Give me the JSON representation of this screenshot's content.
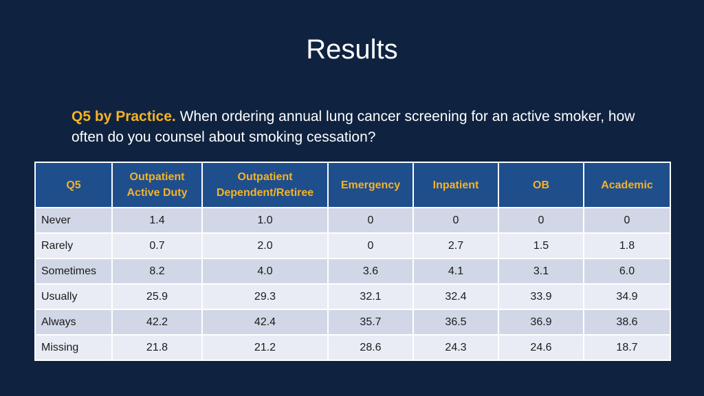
{
  "slide": {
    "title": "Results"
  },
  "question": {
    "lead": "Q5 by Practice.",
    "text": " When ordering annual lung cancer screening for an active smoker, how often do you counsel about smoking cessation?"
  },
  "table": {
    "headers": [
      [
        "Q5"
      ],
      [
        "Outpatient",
        "Active Duty"
      ],
      [
        "Outpatient",
        "Dependent/Retiree"
      ],
      [
        "Emergency"
      ],
      [
        "Inpatient"
      ],
      [
        "OB"
      ],
      [
        "Academic"
      ]
    ],
    "rows": [
      {
        "label": "Never",
        "values": [
          "1.4",
          "1.0",
          "0",
          "0",
          "0",
          "0"
        ]
      },
      {
        "label": "Rarely",
        "values": [
          "0.7",
          "2.0",
          "0",
          "2.7",
          "1.5",
          "1.8"
        ]
      },
      {
        "label": "Sometimes",
        "values": [
          "8.2",
          "4.0",
          "3.6",
          "4.1",
          "3.1",
          "6.0"
        ]
      },
      {
        "label": "Usually",
        "values": [
          "25.9",
          "29.3",
          "32.1",
          "32.4",
          "33.9",
          "34.9"
        ]
      },
      {
        "label": "Always",
        "values": [
          "42.2",
          "42.4",
          "35.7",
          "36.5",
          "36.9",
          "38.6"
        ]
      },
      {
        "label": "Missing",
        "values": [
          "21.8",
          "21.2",
          "28.6",
          "24.3",
          "24.6",
          "18.7"
        ]
      }
    ]
  },
  "colors": {
    "background": "#0f2340",
    "header_fill": "#1f4e8c",
    "accent": "#f5b325",
    "row_odd": "#d1d7e6",
    "row_even": "#e9ecf4"
  }
}
